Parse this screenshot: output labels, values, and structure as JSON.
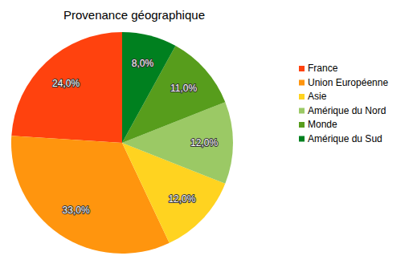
{
  "chart_data": {
    "type": "pie",
    "title": "Provenance géographique",
    "categories": [
      "France",
      "Union Européenne",
      "Asie",
      "Amérique du Nord",
      "Monde",
      "Amérique du Sud"
    ],
    "values": [
      24,
      33,
      12,
      12,
      11,
      8
    ],
    "value_labels": [
      "24,0%",
      "33,0%",
      "12,0%",
      "12,0%",
      "11,0%",
      "8,0%"
    ],
    "colors": [
      "#ff420e",
      "#ff950e",
      "#ffd320",
      "#9bc965",
      "#579d1c",
      "#00801f"
    ],
    "data_labels": true,
    "legend": "right"
  }
}
